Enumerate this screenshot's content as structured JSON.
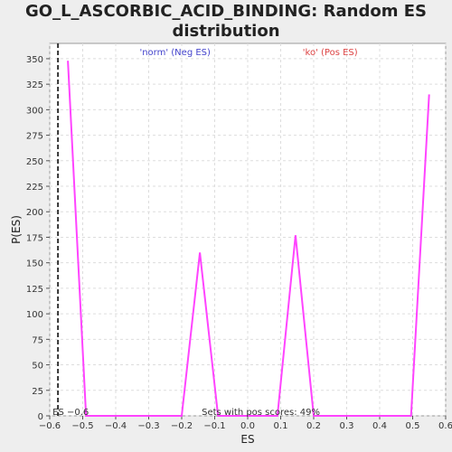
{
  "title_line1": "GO_L_ASCORBIC_ACID_BINDING: Random ES",
  "title_line2": "distribution",
  "colors": {
    "line": "#ff44ff",
    "neg_label": "#4444cc",
    "pos_label": "#dd4444",
    "grid": "#dddddd",
    "es_marker": "#333333"
  },
  "chart_data": {
    "type": "line",
    "title": "GO_L_ASCORBIC_ACID_BINDING: Random ES distribution",
    "xlabel": "ES",
    "ylabel": "P(ES)",
    "xlim": [
      -0.6,
      0.6
    ],
    "ylim": [
      0,
      365
    ],
    "grid": true,
    "x_ticks": [
      -0.6,
      -0.5,
      -0.4,
      -0.3,
      -0.2,
      -0.1,
      0.0,
      0.1,
      0.2,
      0.3,
      0.4,
      0.5,
      0.6
    ],
    "x_tick_labels": [
      "−0.6",
      "−0.5",
      "−0.4",
      "−0.3",
      "−0.2",
      "−0.1",
      "0.0",
      "0.1",
      "0.2",
      "0.3",
      "0.4",
      "0.5",
      "0.6"
    ],
    "y_ticks": [
      0,
      25,
      50,
      75,
      100,
      125,
      150,
      175,
      200,
      225,
      250,
      275,
      300,
      325,
      350
    ],
    "y_tick_labels": [
      "0",
      "25",
      "50",
      "75",
      "100",
      "125",
      "150",
      "175",
      "200",
      "225",
      "250",
      "275",
      "300",
      "325",
      "350"
    ],
    "series": [
      {
        "x": [
          -0.545,
          -0.49,
          -0.2,
          -0.145,
          -0.09,
          0.09,
          0.145,
          0.2,
          0.495,
          0.55
        ],
        "y": [
          348,
          0,
          0,
          160,
          0,
          0,
          177,
          0,
          0,
          315
        ]
      }
    ],
    "es_value": -0.575,
    "annotations": {
      "neg_label": "'norm' (Neg ES)",
      "pos_label": "'ko' (Pos ES)",
      "es_label": "ES −0.6",
      "sets_label": "Sets with pos scores: 49%"
    }
  }
}
